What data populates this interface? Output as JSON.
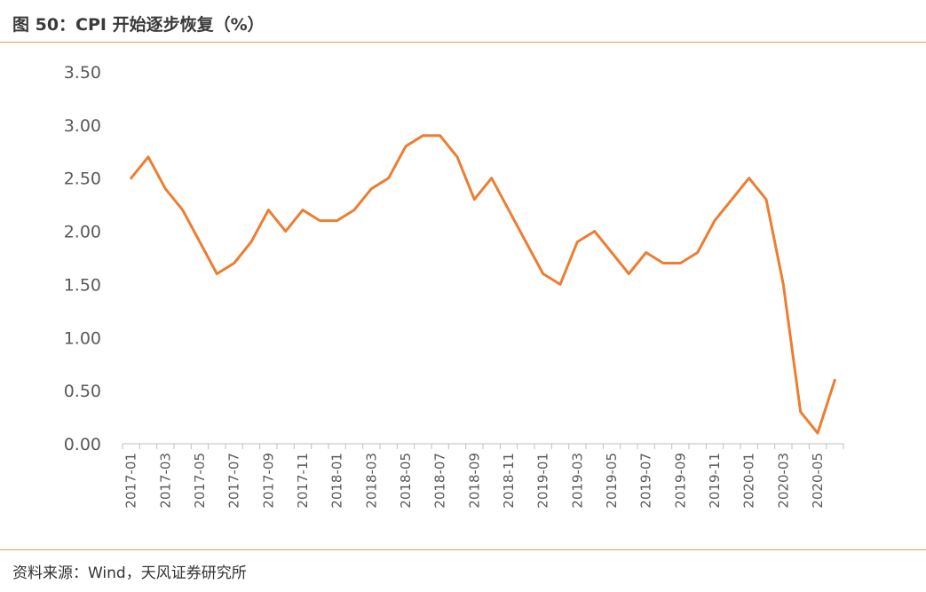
{
  "header": {
    "title": "图 50：CPI 开始逐步恢复（%）"
  },
  "footer": {
    "source": "资料来源：Wind，天风证券研究所"
  },
  "chart_data": {
    "type": "line",
    "title": "图 50：CPI 开始逐步恢复（%）",
    "xlabel": "",
    "ylabel": "",
    "ylim": [
      0,
      3.5
    ],
    "yticks": [
      "0.00",
      "0.50",
      "1.00",
      "1.50",
      "2.00",
      "2.50",
      "3.00",
      "3.50"
    ],
    "grid": false,
    "line_color": "#ed7d31",
    "x": [
      "2017-01",
      "2017-02",
      "2017-03",
      "2017-04",
      "2017-05",
      "2017-06",
      "2017-07",
      "2017-08",
      "2017-09",
      "2017-10",
      "2017-11",
      "2017-12",
      "2018-01",
      "2018-02",
      "2018-03",
      "2018-04",
      "2018-05",
      "2018-06",
      "2018-07",
      "2018-08",
      "2018-09",
      "2018-10",
      "2018-11",
      "2018-12",
      "2019-01",
      "2019-02",
      "2019-03",
      "2019-04",
      "2019-05",
      "2019-06",
      "2019-07",
      "2019-08",
      "2019-09",
      "2019-10",
      "2019-11",
      "2019-12",
      "2020-01",
      "2020-02",
      "2020-03",
      "2020-04",
      "2020-05",
      "2020-06"
    ],
    "xtick_labels": [
      "2017-01",
      "2017-03",
      "2017-05",
      "2017-07",
      "2017-09",
      "2017-11",
      "2018-01",
      "2018-03",
      "2018-05",
      "2018-07",
      "2018-09",
      "2018-11",
      "2019-01",
      "2019-03",
      "2019-05",
      "2019-07",
      "2019-09",
      "2019-11",
      "2020-01",
      "2020-03",
      "2020-05"
    ],
    "series": [
      {
        "values": [
          2.5,
          2.7,
          2.4,
          2.2,
          1.9,
          1.6,
          1.7,
          1.9,
          2.2,
          2.0,
          2.2,
          2.1,
          2.1,
          2.2,
          2.4,
          2.5,
          2.8,
          2.9,
          2.9,
          2.7,
          2.3,
          2.5,
          2.2,
          1.9,
          1.6,
          1.5,
          1.9,
          2.0,
          1.8,
          1.6,
          1.8,
          1.7,
          1.7,
          1.8,
          2.1,
          2.3,
          2.5,
          2.3,
          1.5,
          0.3,
          0.1,
          0.6
        ]
      }
    ]
  }
}
